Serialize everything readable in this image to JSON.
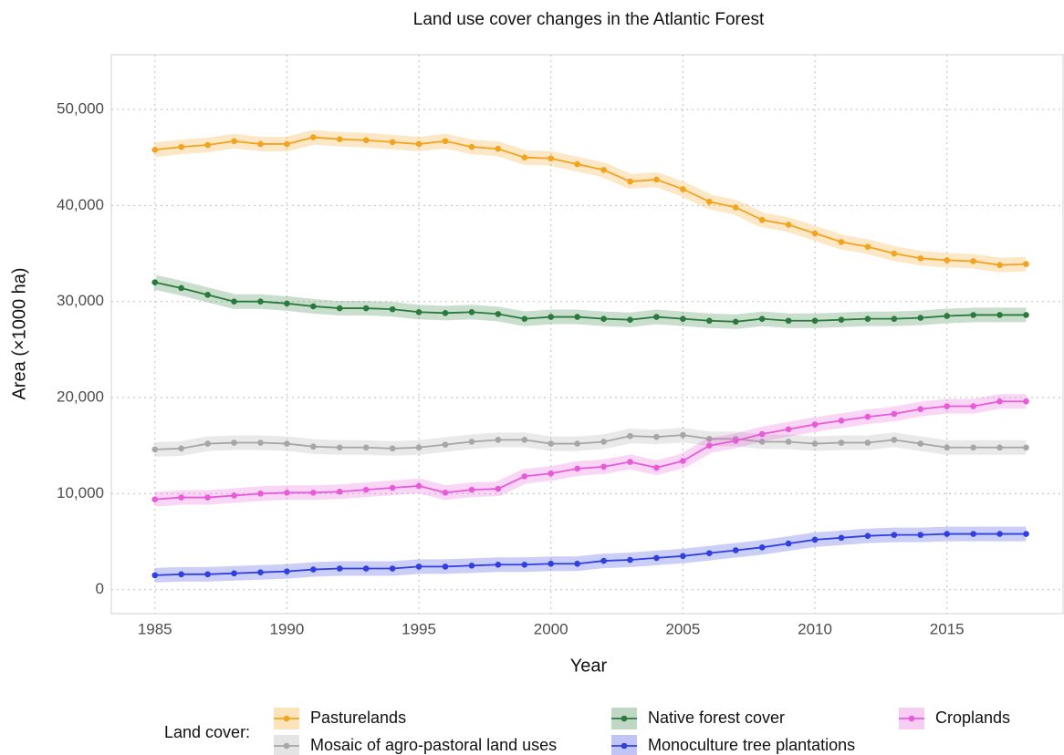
{
  "chart_data": {
    "type": "line",
    "title": "Land use cover changes in the Atlantic Forest",
    "x_label": "Year",
    "y_label": "Area (×1000 ha)",
    "legend_title": "Land cover:",
    "legend_position": "bottom",
    "grid": true,
    "x": [
      1985,
      1986,
      1987,
      1988,
      1989,
      1990,
      1991,
      1992,
      1993,
      1994,
      1995,
      1996,
      1997,
      1998,
      1999,
      2000,
      2001,
      2002,
      2003,
      2004,
      2005,
      2006,
      2007,
      2008,
      2009,
      2010,
      2011,
      2012,
      2013,
      2014,
      2015,
      2016,
      2017,
      2018
    ],
    "xlim": [
      1983.35,
      2019.4
    ],
    "xticks": [
      1985,
      1990,
      1995,
      2000,
      2005,
      2010,
      2015
    ],
    "ylim": [
      -2500,
      55700
    ],
    "yticks": [
      0,
      {
        "value": 10000,
        "label": "10,000"
      },
      {
        "value": 20000,
        "label": "20,000"
      },
      {
        "value": 30000,
        "label": "30,000"
      },
      {
        "value": 40000,
        "label": "40,000"
      },
      {
        "value": 50000,
        "label": "50,000"
      }
    ],
    "series": [
      {
        "name": "Pasturelands",
        "color": "#f2a31f",
        "values": [
          45800,
          46100,
          46300,
          46700,
          46400,
          46400,
          47100,
          46900,
          46800,
          46600,
          46400,
          46700,
          46100,
          45900,
          45000,
          44900,
          44300,
          43700,
          42500,
          42700,
          41700,
          40400,
          39800,
          38500,
          38000,
          37100,
          36200,
          35700,
          35000,
          34500,
          34300,
          34200,
          33800,
          33900
        ]
      },
      {
        "name": "Mosaic of agro-pastoral land uses",
        "color": "#a6a6a6",
        "values": [
          14600,
          14700,
          15200,
          15300,
          15300,
          15200,
          14900,
          14800,
          14800,
          14700,
          14800,
          15100,
          15400,
          15600,
          15600,
          15200,
          15200,
          15400,
          16000,
          15900,
          16100,
          15700,
          15700,
          15400,
          15400,
          15200,
          15300,
          15300,
          15600,
          15200,
          14800,
          14800,
          14800,
          14800
        ]
      },
      {
        "name": "Native forest cover",
        "color": "#2a7a3b",
        "values": [
          32000,
          31400,
          30700,
          30000,
          30000,
          29800,
          29500,
          29300,
          29300,
          29200,
          28900,
          28800,
          28900,
          28700,
          28200,
          28400,
          28400,
          28200,
          28100,
          28400,
          28200,
          28000,
          27900,
          28200,
          28000,
          28000,
          28100,
          28200,
          28200,
          28300,
          28500,
          28600,
          28600,
          28600
        ]
      },
      {
        "name": "Monoculture tree plantations",
        "color": "#2f3fe0",
        "values": [
          1500,
          1600,
          1600,
          1700,
          1800,
          1900,
          2100,
          2200,
          2200,
          2200,
          2400,
          2400,
          2500,
          2600,
          2600,
          2700,
          2700,
          3000,
          3100,
          3300,
          3500,
          3800,
          4100,
          4400,
          4800,
          5200,
          5400,
          5600,
          5700,
          5700,
          5800,
          5800,
          5800,
          5800
        ]
      },
      {
        "name": "Croplands",
        "color": "#e85bd8",
        "values": [
          9400,
          9600,
          9600,
          9800,
          10000,
          10100,
          10100,
          10200,
          10400,
          10600,
          10800,
          10100,
          10400,
          10500,
          11800,
          12100,
          12600,
          12800,
          13300,
          12700,
          13400,
          15000,
          15500,
          16200,
          16700,
          17200,
          17600,
          18000,
          18300,
          18800,
          19100,
          19100,
          19600,
          19600
        ]
      }
    ]
  }
}
